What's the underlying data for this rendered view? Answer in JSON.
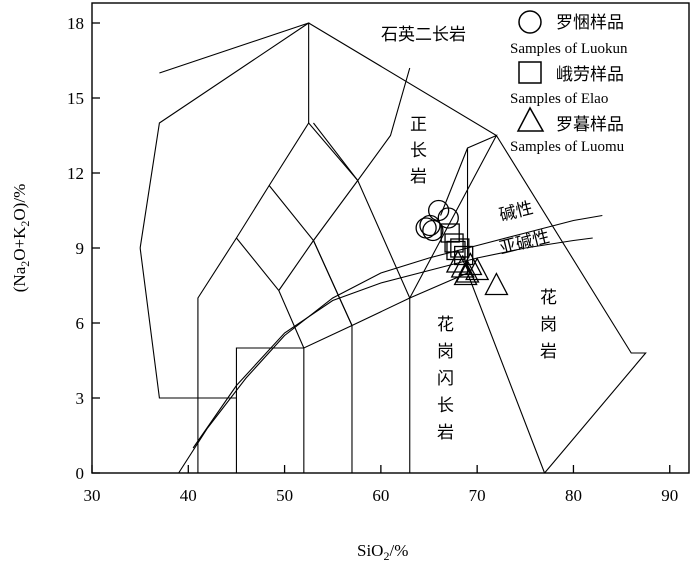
{
  "chart_data": {
    "type": "scatter",
    "title": "",
    "xlabel": "SiO2/%",
    "ylabel": "(Na2O+K2O)/%",
    "xlim": [
      30,
      92
    ],
    "ylim": [
      0,
      18.8
    ],
    "x_ticks": [
      30,
      40,
      50,
      60,
      70,
      80,
      90
    ],
    "y_ticks": [
      0,
      3,
      6,
      9,
      12,
      15,
      18
    ],
    "grid": false,
    "legend_position": "top-right",
    "field_labels": [
      {
        "text": "石英二长岩"
      },
      {
        "text": "正长岩"
      },
      {
        "text": "碱性"
      },
      {
        "text": "亚碱性"
      },
      {
        "text": "花岗岩"
      },
      {
        "text": "花岗闪长岩"
      }
    ],
    "series": [
      {
        "name_cn": "罗悃样品",
        "name_en": "Samples of Luokun",
        "marker": "circle",
        "points": [
          [
            66.0,
            10.5
          ],
          [
            67.0,
            10.2
          ],
          [
            64.7,
            9.8
          ],
          [
            65.1,
            9.9
          ],
          [
            65.4,
            9.7
          ]
        ]
      },
      {
        "name_cn": "峨劳样品",
        "name_en": "Samples of Elao",
        "marker": "square",
        "points": [
          [
            67.2,
            9.6
          ],
          [
            67.6,
            9.2
          ],
          [
            68.2,
            9.0
          ],
          [
            67.8,
            8.9
          ],
          [
            68.6,
            8.7
          ]
        ]
      },
      {
        "name_cn": "罗暮样品",
        "name_en": "Samples of Luomu",
        "marker": "triangle",
        "points": [
          [
            68.0,
            8.4
          ],
          [
            68.5,
            8.2
          ],
          [
            69.0,
            8.0
          ],
          [
            69.3,
            8.3
          ],
          [
            68.8,
            7.9
          ],
          [
            70.0,
            8.1
          ],
          [
            72.0,
            7.5
          ]
        ]
      }
    ]
  }
}
